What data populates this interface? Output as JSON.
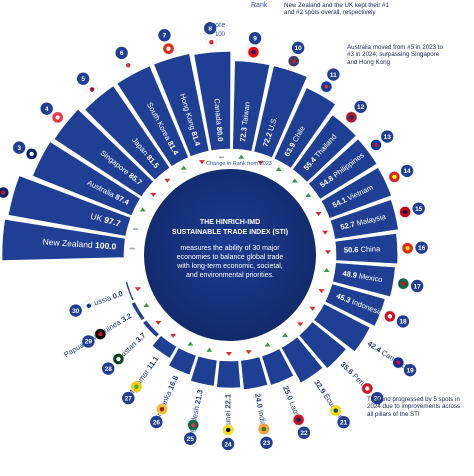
{
  "header": {
    "rank_label": "Rank",
    "score_label": "Score",
    "score_max": "100",
    "change_label": "Change in Rank from 2023"
  },
  "center": {
    "title": "THE HINRICH-IMD",
    "subtitle": "SUSTAINABLE TRADE INDEX (STI)",
    "description": "measures the ability of 30 major economies to balance global trade with long-term economic, societal, and environmental priorities."
  },
  "annotations": {
    "nz_uk": "New Zealand and the UK kept their #1 and #2 spots overall, respectively",
    "australia": "Australia moved from #5 in 2023 to #3 in 2024, surpassing Singapore and Hong Kong",
    "thailand": "Thailand progressed by 5 spots in 2024 due to improvements across all pillars of the STI"
  },
  "colors": {
    "bar": "#1f3f95",
    "bar_light": "#2e5bc4",
    "center_dark": "#15307a",
    "up": "#2f9e44",
    "down": "#d62b2b",
    "rank_badge": "#1f3f95"
  },
  "chart_data": {
    "type": "bar",
    "layout": "radial",
    "title": "THE HINRICH-IMD SUSTAINABLE TRADE INDEX (STI)",
    "ylabel": "Score",
    "ylim": [
      0,
      100
    ],
    "countries": [
      {
        "rank": 1,
        "name": "New Zealand",
        "score": 100.0,
        "score_label": "100.0",
        "change": "same",
        "flag": "nz"
      },
      {
        "rank": 2,
        "name": "UK",
        "score": 97.7,
        "score_label": "97.7",
        "change": "same",
        "flag": "uk"
      },
      {
        "rank": 3,
        "name": "Australia",
        "score": 87.4,
        "score_label": "87.4",
        "change": "up",
        "flag": "au"
      },
      {
        "rank": 4,
        "name": "Singapore",
        "score": 85.7,
        "score_label": "85.7",
        "change": "down",
        "flag": "sg"
      },
      {
        "rank": 5,
        "name": "Japan",
        "score": 81.5,
        "score_label": "81.5",
        "change": "down",
        "flag": "jp"
      },
      {
        "rank": 6,
        "name": "South Korea",
        "score": 81.4,
        "score_label": "81.4",
        "change": "up",
        "flag": "kr"
      },
      {
        "rank": 7,
        "name": "Hong Kong",
        "score": 81.4,
        "score_label": "81.4",
        "change": "down",
        "flag": "hk"
      },
      {
        "rank": 8,
        "name": "Canada",
        "score": 80.0,
        "score_label": "80.0",
        "change": "same",
        "flag": "ca"
      },
      {
        "rank": 9,
        "name": "Taiwan",
        "score": 72.3,
        "score_label": "72.3",
        "change": "up",
        "flag": "tw"
      },
      {
        "rank": 10,
        "name": "U.S.",
        "score": 72.2,
        "score_label": "72.2",
        "change": "down",
        "flag": "us"
      },
      {
        "rank": 11,
        "name": "Chile",
        "score": 63.9,
        "score_label": "63.9",
        "change": "up",
        "flag": "cl"
      },
      {
        "rank": 12,
        "name": "Thailand",
        "score": 55.4,
        "score_label": "55.4",
        "change": "up",
        "flag": "th"
      },
      {
        "rank": 13,
        "name": "Philippines",
        "score": 54.8,
        "score_label": "54.8",
        "change": "up",
        "flag": "ph"
      },
      {
        "rank": 14,
        "name": "Vietnam",
        "score": 54.1,
        "score_label": "54.1",
        "change": "down",
        "flag": "vn"
      },
      {
        "rank": 15,
        "name": "Malaysia",
        "score": 52.7,
        "score_label": "52.7",
        "change": "down",
        "flag": "my"
      },
      {
        "rank": 16,
        "name": "China",
        "score": 50.6,
        "score_label": "50.6",
        "change": "down",
        "flag": "cn"
      },
      {
        "rank": 17,
        "name": "Mexico",
        "score": 48.9,
        "score_label": "48.9",
        "change": "up",
        "flag": "mx"
      },
      {
        "rank": 18,
        "name": "Indonesia",
        "score": 45.3,
        "score_label": "45.3",
        "change": "down",
        "flag": "id"
      },
      {
        "rank": 19,
        "name": "Cambodia",
        "score": 42.4,
        "score_label": "42.4",
        "change": "down",
        "flag": "kh"
      },
      {
        "rank": 20,
        "name": "Peru",
        "score": 35.6,
        "score_label": "35.6",
        "change": "down",
        "flag": "pe"
      },
      {
        "rank": 21,
        "name": "Ecuador",
        "score": 32.9,
        "score_label": "32.9",
        "change": "up",
        "flag": "ec"
      },
      {
        "rank": 22,
        "name": "Laos",
        "score": 25.0,
        "score_label": "25.0",
        "change": "up",
        "flag": "la"
      },
      {
        "rank": 23,
        "name": "India",
        "score": 24.0,
        "score_label": "24.0",
        "change": "down",
        "flag": "in"
      },
      {
        "rank": 24,
        "name": "Brunei",
        "score": 22.1,
        "score_label": "22.1",
        "change": "down",
        "flag": "bn"
      },
      {
        "rank": 25,
        "name": "Bangladesh",
        "score": 21.3,
        "score_label": "21.3",
        "change": "up",
        "flag": "bd"
      },
      {
        "rank": 26,
        "name": "Sri Lanka",
        "score": 16.8,
        "score_label": "16.8",
        "change": "up",
        "flag": "lk"
      },
      {
        "rank": 27,
        "name": "Myanmar",
        "score": 11.1,
        "score_label": "11.1",
        "change": "down",
        "flag": "mm"
      },
      {
        "rank": 28,
        "name": "Pakistan",
        "score": 3.7,
        "score_label": "3.7",
        "change": "down",
        "flag": "pk"
      },
      {
        "rank": 29,
        "name": "Papua New Guinea",
        "score": 3.2,
        "score_label": "3.2",
        "change": "up",
        "flag": "pg"
      },
      {
        "rank": 30,
        "name": "Russia",
        "score": 0.0,
        "score_label": "0.0",
        "change": "down",
        "flag": "ru"
      }
    ]
  }
}
